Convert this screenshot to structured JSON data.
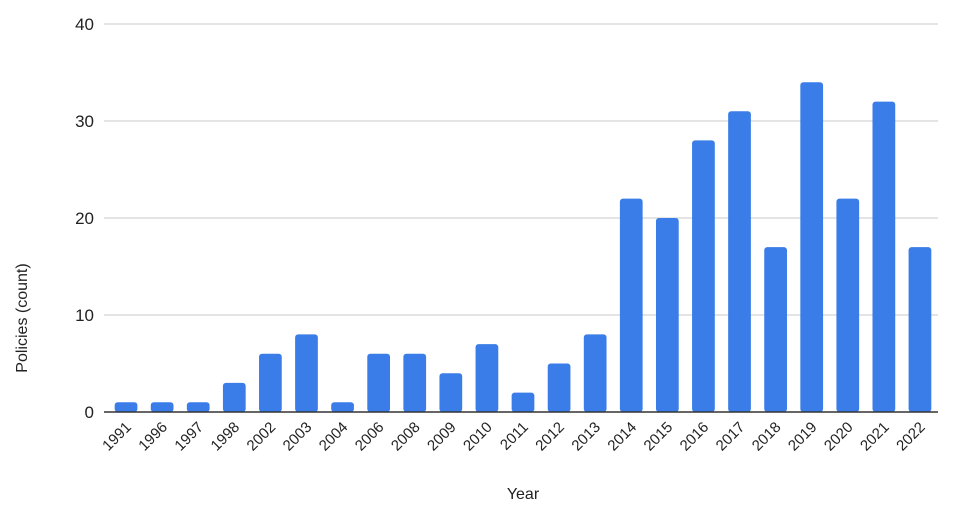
{
  "chart_data": {
    "type": "bar",
    "title": "",
    "xlabel": "Year",
    "ylabel": "Policies (count)",
    "ylim": [
      0,
      40
    ],
    "yticks": [
      0,
      10,
      20,
      30,
      40
    ],
    "grid": true,
    "legend": "none",
    "bar_color": "#3a7de8",
    "categories": [
      "1991",
      "1996",
      "1997",
      "1998",
      "2002",
      "2003",
      "2004",
      "2006",
      "2008",
      "2009",
      "2010",
      "2011",
      "2012",
      "2013",
      "2014",
      "2015",
      "2016",
      "2017",
      "2018",
      "2019",
      "2020",
      "2021",
      "2022"
    ],
    "values": [
      1,
      1,
      1,
      3,
      6,
      8,
      1,
      6,
      6,
      4,
      7,
      2,
      5,
      8,
      22,
      20,
      28,
      31,
      17,
      34,
      22,
      32,
      17
    ]
  }
}
